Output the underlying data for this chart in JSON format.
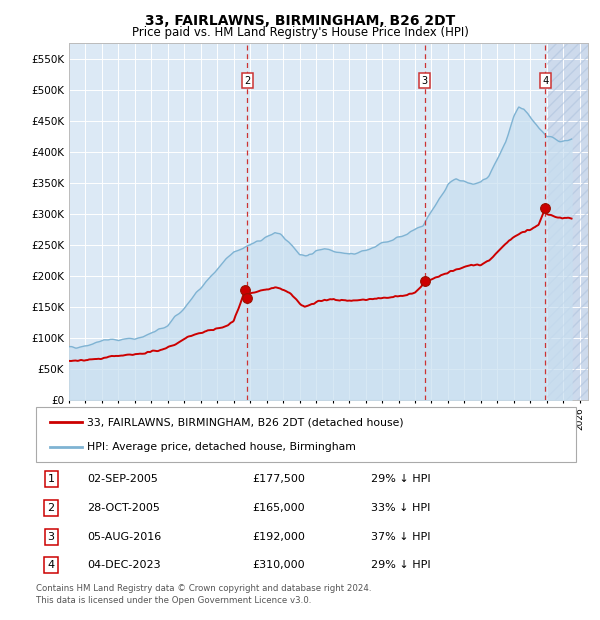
{
  "title": "33, FAIRLAWNS, BIRMINGHAM, B26 2DT",
  "subtitle": "Price paid vs. HM Land Registry's House Price Index (HPI)",
  "footnote": "Contains HM Land Registry data © Crown copyright and database right 2024.\nThis data is licensed under the Open Government Licence v3.0.",
  "xlim_start": 1995.0,
  "xlim_end": 2026.5,
  "ylim": [
    0,
    575000
  ],
  "yticks": [
    0,
    50000,
    100000,
    150000,
    200000,
    250000,
    300000,
    350000,
    400000,
    450000,
    500000,
    550000
  ],
  "ytick_labels": [
    "£0",
    "£50K",
    "£100K",
    "£150K",
    "£200K",
    "£250K",
    "£300K",
    "£350K",
    "£400K",
    "£450K",
    "£500K",
    "£550K"
  ],
  "hpi_color": "#7fb3d3",
  "hpi_fill_color": "#c8dff0",
  "price_color": "#cc0000",
  "bg_color": "#dce9f5",
  "hatch_bg_color": "#cddaec",
  "vline_color": "#cc3333",
  "vlines_x": [
    2005.83,
    2016.58,
    2023.92
  ],
  "vline_labels": [
    "2",
    "3",
    "4"
  ],
  "sales_markers": [
    [
      2005.67,
      177500
    ],
    [
      2005.83,
      165000
    ],
    [
      2016.58,
      192000
    ],
    [
      2023.92,
      310000
    ]
  ],
  "legend_property_label": "33, FAIRLAWNS, BIRMINGHAM, B26 2DT (detached house)",
  "legend_hpi_label": "HPI: Average price, detached house, Birmingham",
  "table_rows": [
    {
      "num": "1",
      "date": "02-SEP-2005",
      "price": "£177,500",
      "pct": "29% ↓ HPI"
    },
    {
      "num": "2",
      "date": "28-OCT-2005",
      "price": "£165,000",
      "pct": "33% ↓ HPI"
    },
    {
      "num": "3",
      "date": "05-AUG-2016",
      "price": "£192,000",
      "pct": "37% ↓ HPI"
    },
    {
      "num": "4",
      "date": "04-DEC-2023",
      "price": "£310,000",
      "pct": "29% ↓ HPI"
    }
  ]
}
